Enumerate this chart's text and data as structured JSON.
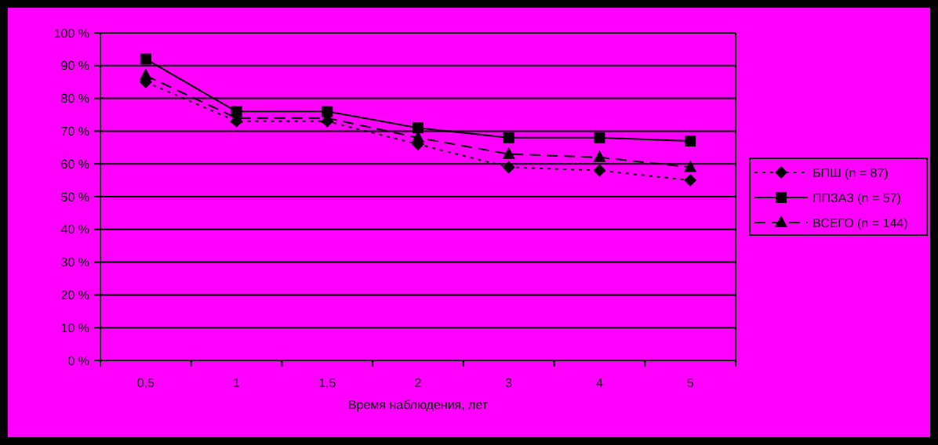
{
  "chart_data": {
    "type": "line",
    "xlabel": "Время наблюдения, лет",
    "categories": [
      "0,5",
      "1",
      "1,5",
      "2",
      "3",
      "4",
      "5"
    ],
    "series": [
      {
        "name": "БПШ (n = 87)",
        "color": "#000000",
        "marker": "diamond",
        "line_style": "dotted",
        "values": [
          85,
          73,
          73,
          66,
          59,
          58,
          55
        ]
      },
      {
        "name": "ППЗАЗ (n = 57)",
        "color": "#000000",
        "marker": "square",
        "line_style": "solid",
        "values": [
          92,
          76,
          76,
          71,
          68,
          68,
          67
        ]
      },
      {
        "name": "ВСЕГО (n = 144)",
        "color": "#000000",
        "marker": "triangle",
        "line_style": "dashed",
        "values": [
          87,
          74,
          74,
          68,
          63,
          62,
          59
        ]
      }
    ],
    "ylim": [
      0,
      100
    ],
    "yticks": [
      {
        "value": 0,
        "label": "0 %"
      },
      {
        "value": 10,
        "label": "10 %"
      },
      {
        "value": 20,
        "label": "20 %"
      },
      {
        "value": 30,
        "label": "30 %"
      },
      {
        "value": 40,
        "label": "40 %"
      },
      {
        "value": 50,
        "label": "50 %"
      },
      {
        "value": 60,
        "label": "60 %"
      },
      {
        "value": 70,
        "label": "70 %"
      },
      {
        "value": 80,
        "label": "80 %"
      },
      {
        "value": 90,
        "label": "90 %"
      },
      {
        "value": 100,
        "label": "100 %"
      }
    ],
    "grid": "y",
    "legend": "right"
  }
}
